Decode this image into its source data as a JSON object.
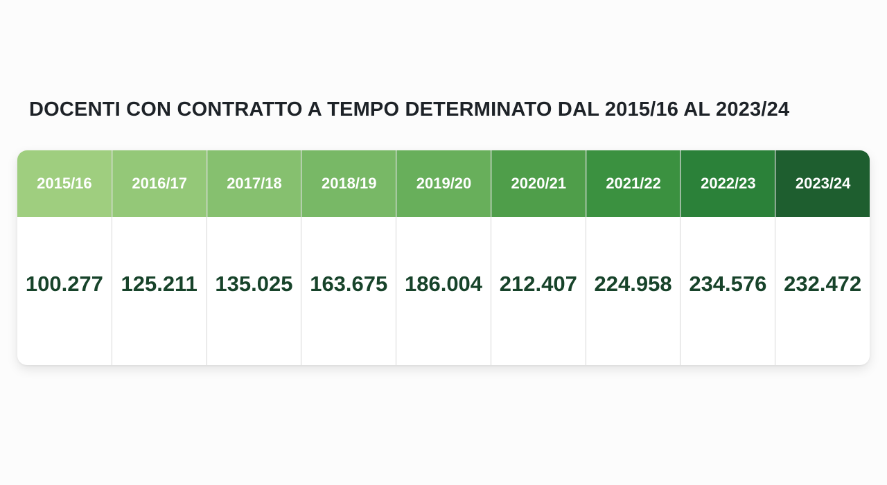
{
  "title": "DOCENTI CON CONTRATTO A TEMPO DETERMINATO DAL 2015/16 AL 2023/24",
  "chart_data": {
    "type": "table",
    "title": "DOCENTI CON CONTRATTO A TEMPO DETERMINATO DAL 2015/16 AL 2023/24",
    "categories": [
      "2015/16",
      "2016/17",
      "2017/18",
      "2018/19",
      "2019/20",
      "2020/21",
      "2021/22",
      "2022/23",
      "2023/24"
    ],
    "values": [
      100277,
      125211,
      135025,
      163675,
      186004,
      212407,
      224958,
      234576,
      232472
    ],
    "value_labels": [
      "100.277",
      "125.211",
      "135.025",
      "163.675",
      "186.004",
      "212.407",
      "224.958",
      "234.576",
      "232.472"
    ],
    "header_colors": [
      "#9fce7f",
      "#94c878",
      "#86c06f",
      "#78b866",
      "#68af5b",
      "#4f9e4a",
      "#3b9140",
      "#2b8139",
      "#1e5e2f"
    ]
  }
}
